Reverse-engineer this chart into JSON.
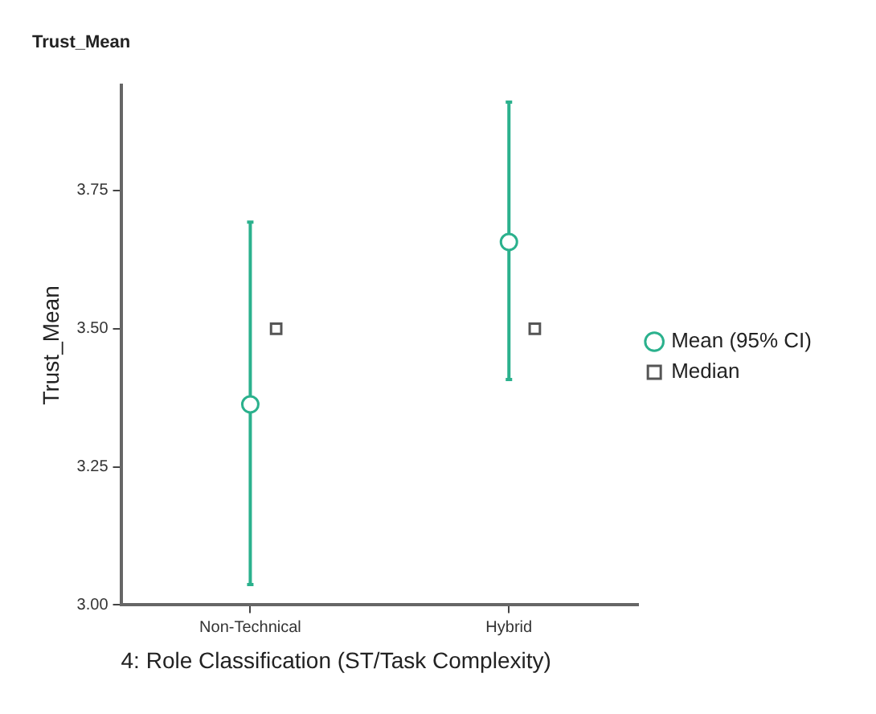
{
  "chart_data": {
    "type": "scatter",
    "title": "Trust_Mean",
    "xlabel": "4: Role Classification (ST/Task Complexity)",
    "ylabel": "Trust_Mean",
    "categories": [
      "Non-Technical",
      "Hybrid"
    ],
    "series": [
      {
        "name": "Mean (95% CI)",
        "color": "#2bb18d",
        "marker": "circle",
        "values": [
          3.363,
          3.657
        ],
        "errors": [
          [
            3.037,
            3.693
          ],
          [
            3.408,
            3.91
          ]
        ]
      },
      {
        "name": "Median",
        "color": "#555555",
        "marker": "square",
        "values": [
          3.5,
          3.5
        ]
      }
    ],
    "ylim": [
      3.0,
      3.94
    ],
    "yticks": [
      {
        "value": 3.0,
        "label": "3.00"
      },
      {
        "value": 3.25,
        "label": "3.25"
      },
      {
        "value": 3.5,
        "label": "3.50"
      },
      {
        "value": 3.75,
        "label": "3.75"
      }
    ],
    "grid": false,
    "legend": "right"
  }
}
